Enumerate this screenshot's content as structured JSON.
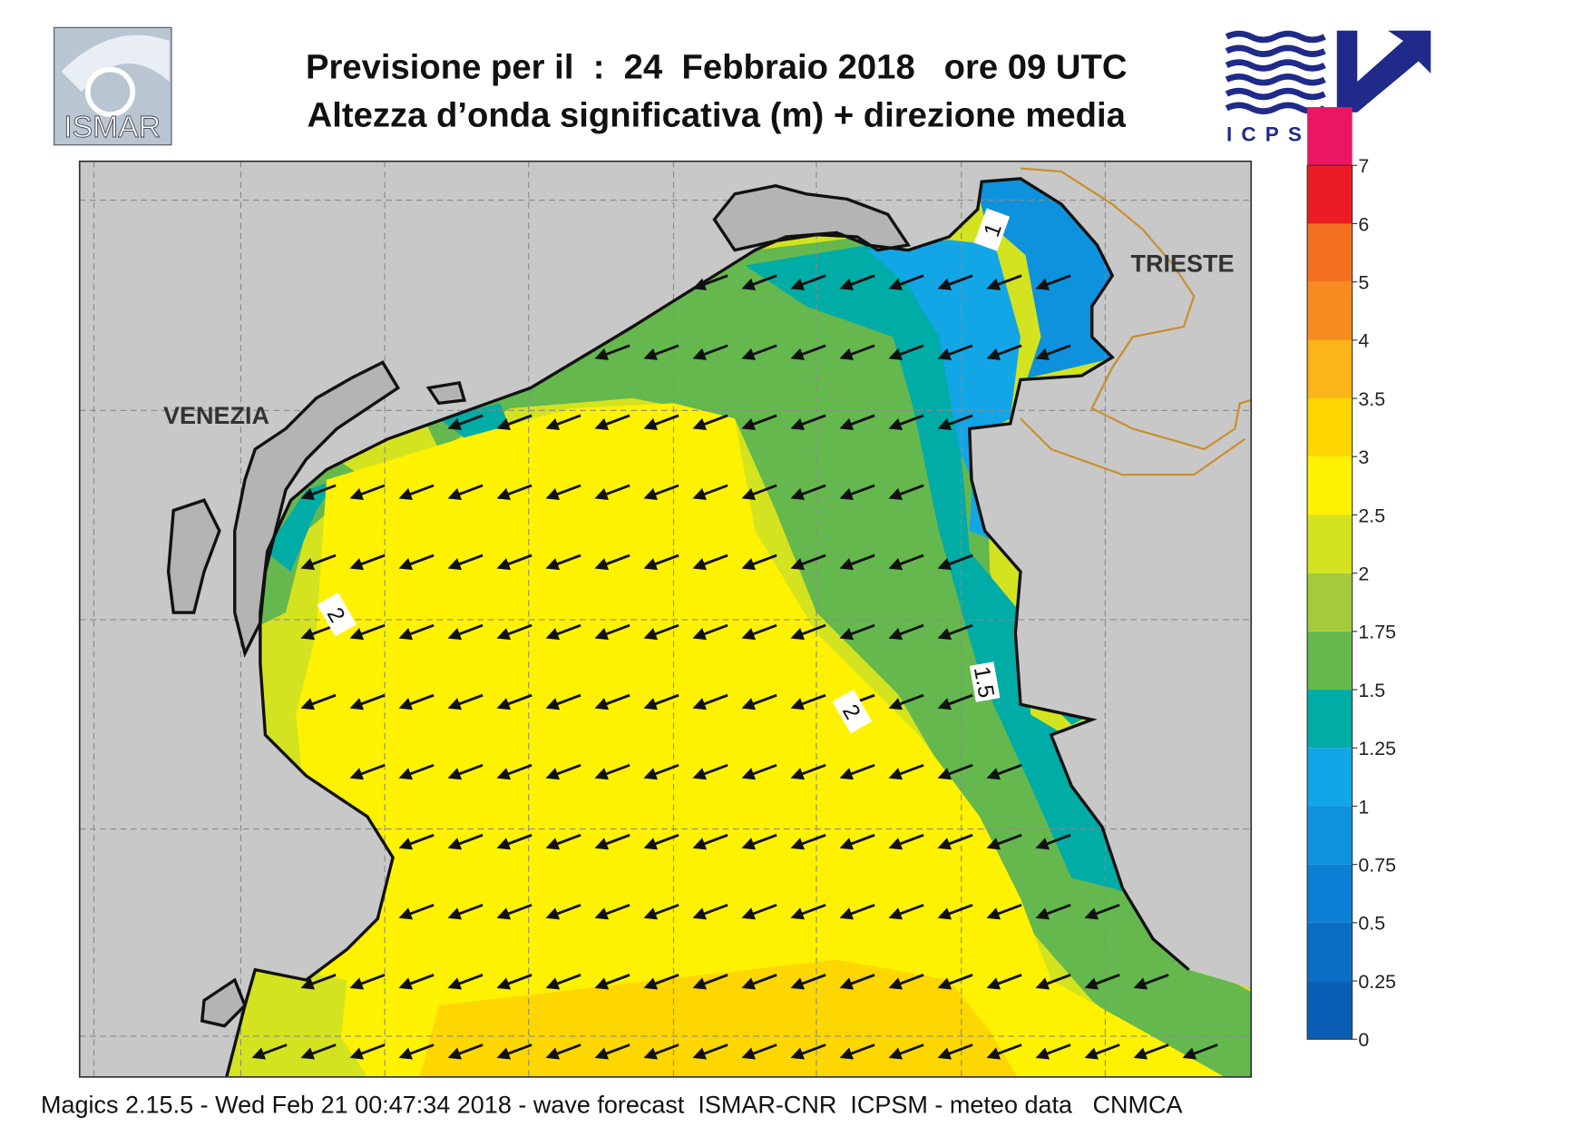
{
  "header": {
    "title_line1": "Previsione per il  :  24  Febbraio 2018   ore 09 UTC",
    "title_line2": "Altezza d’onda significativa (m) + direzione media",
    "logo_left": "ISMAR",
    "logo_right": "ICPSM"
  },
  "map": {
    "places": [
      "VENEZIA",
      "TRIESTE"
    ],
    "contour_labels": [
      "1",
      "2",
      "1.5",
      "2"
    ]
  },
  "colorbar": {
    "ticks": [
      0,
      0.25,
      0.5,
      0.75,
      1,
      1.25,
      1.5,
      1.75,
      2,
      2.5,
      3,
      3.5,
      4,
      5,
      6,
      7
    ],
    "colors": [
      "#0a5fb4",
      "#0a6fc4",
      "#0b80d4",
      "#0e92de",
      "#12a6e6",
      "#00aca6",
      "#65b84e",
      "#a5cb3c",
      "#d4e31f",
      "#fff200",
      "#fed700",
      "#fbb519",
      "#f68b1f",
      "#f47021",
      "#ec1c24",
      "#ec1561"
    ]
  },
  "footer": "Magics 2.15.5 - Wed Feb 21 00:47:34 2018 - wave forecast  ISMAR-CNR  ICPSM - meteo data   CNMCA"
}
